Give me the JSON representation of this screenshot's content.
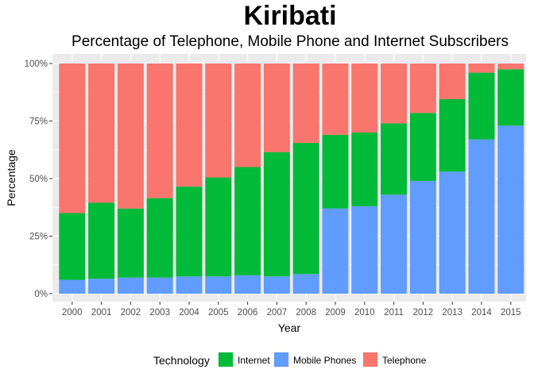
{
  "chart_data": {
    "type": "bar",
    "stacked": true,
    "title": "Kiribati",
    "subtitle": "Percentage of Telephone, Mobile Phone and Internet Subscribers",
    "xlabel": "Year",
    "ylabel": "Percentage",
    "ylim": [
      0,
      100
    ],
    "y_ticks": [
      0,
      25,
      50,
      75,
      100
    ],
    "y_tick_labels": [
      "0%",
      "25%",
      "50%",
      "75%",
      "100%"
    ],
    "categories": [
      "2000",
      "2001",
      "2002",
      "2003",
      "2004",
      "2005",
      "2006",
      "2007",
      "2008",
      "2009",
      "2010",
      "2011",
      "2012",
      "2013",
      "2014",
      "2015"
    ],
    "series": [
      {
        "name": "Mobile Phones",
        "color": "#619CFF",
        "values": [
          6,
          6.5,
          7,
          7,
          7.5,
          7.5,
          8,
          7.5,
          8.5,
          37,
          38,
          43,
          49,
          53,
          67,
          73
        ]
      },
      {
        "name": "Internet",
        "color": "#00BA38",
        "values": [
          29,
          33,
          30,
          34.5,
          39,
          43,
          47,
          54,
          57,
          32,
          32,
          31,
          29.5,
          31.5,
          29,
          24.5
        ]
      },
      {
        "name": "Telephone",
        "color": "#F8766D",
        "values": [
          65,
          60.5,
          63,
          58.5,
          53.5,
          49.5,
          45,
          38.5,
          34.5,
          31,
          30,
          26,
          21.5,
          15.5,
          4,
          2.5
        ]
      }
    ],
    "grid": true,
    "panel_background": "#EBEBEB",
    "gridline_color": "#FFFFFF",
    "legend": {
      "title": "Technology",
      "position": "bottom",
      "items": [
        {
          "label": "Internet",
          "color": "#00BA38"
        },
        {
          "label": "Mobile Phones",
          "color": "#619CFF"
        },
        {
          "label": "Telephone",
          "color": "#F8766D"
        }
      ]
    }
  }
}
